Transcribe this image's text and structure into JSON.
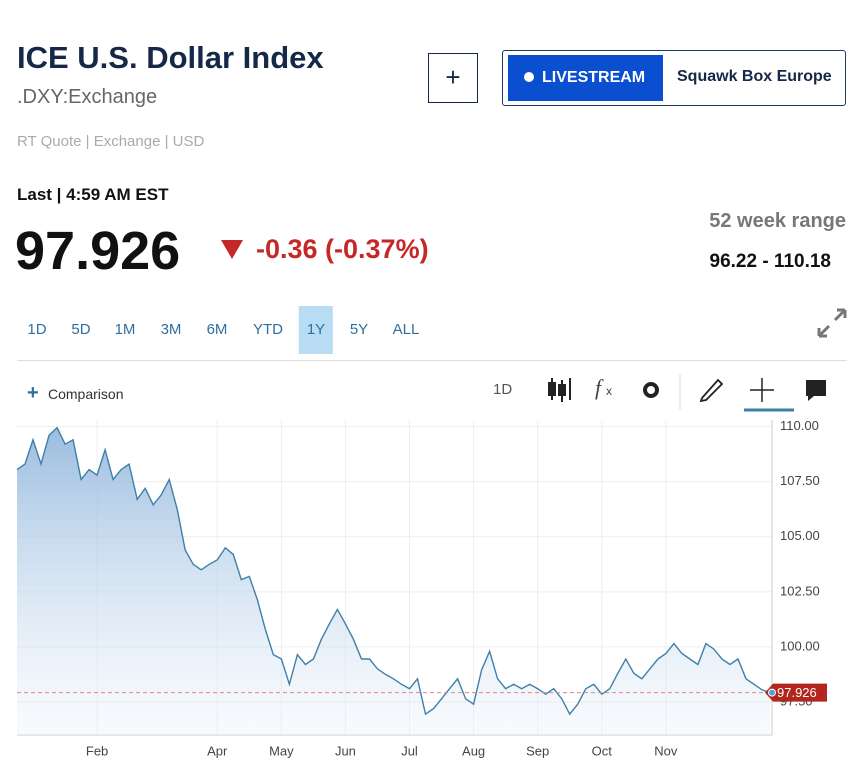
{
  "header": {
    "title": "ICE U.S. Dollar Index",
    "symbol": ".DXY:Exchange",
    "quote_info": "RT Quote | Exchange | USD",
    "add_button": "+",
    "livestream": "LIVESTREAM",
    "show": "Squawk Box Europe"
  },
  "quote": {
    "last_label": "Last | 4:59 AM EST",
    "price": "97.926",
    "change": "-0.36 (-0.37%)",
    "range_label": "52 week range",
    "range": "96.22 - 110.18"
  },
  "periods": {
    "items": [
      "1D",
      "5D",
      "1M",
      "3M",
      "6M",
      "YTD",
      "1Y",
      "5Y",
      "ALL"
    ],
    "selected_index": 6
  },
  "toolbar": {
    "comparison": "Comparison",
    "interval": "1D"
  },
  "chart_data": {
    "type": "area",
    "color": "#3f7fa8",
    "categories": [
      null,
      null,
      null,
      null,
      null,
      null,
      null,
      null,
      null,
      null,
      "Feb",
      null,
      null,
      null,
      null,
      null,
      null,
      null,
      null,
      null,
      null,
      null,
      null,
      null,
      null,
      "Apr",
      null,
      null,
      null,
      null,
      null,
      null,
      null,
      "May",
      null,
      null,
      null,
      null,
      null,
      null,
      null,
      "Jun",
      null,
      null,
      null,
      null,
      null,
      null,
      null,
      "Jul",
      null,
      null,
      null,
      null,
      null,
      null,
      null,
      "Aug",
      null,
      null,
      null,
      null,
      null,
      null,
      null,
      "Sep",
      null,
      null,
      null,
      null,
      null,
      null,
      null,
      "Oct",
      null,
      null,
      null,
      null,
      null,
      null,
      null,
      "Nov",
      null,
      null,
      null,
      null,
      null,
      null,
      null,
      null,
      null,
      null,
      null,
      null,
      null
    ],
    "values": [
      108.05,
      108.3,
      109.4,
      108.3,
      109.6,
      109.95,
      109.2,
      109.4,
      107.6,
      108.05,
      107.8,
      108.95,
      107.6,
      108.05,
      108.3,
      106.7,
      107.2,
      106.45,
      106.9,
      107.6,
      106.25,
      104.4,
      103.75,
      103.5,
      103.75,
      103.95,
      104.5,
      104.2,
      103.05,
      103.2,
      102.15,
      100.8,
      99.65,
      99.45,
      98.3,
      99.65,
      99.2,
      99.45,
      100.35,
      101.05,
      101.7,
      101.05,
      100.35,
      99.45,
      99.45,
      99.0,
      98.75,
      98.55,
      98.3,
      98.1,
      98.55,
      96.95,
      97.2,
      97.65,
      98.1,
      98.55,
      97.65,
      97.4,
      98.95,
      99.8,
      98.55,
      98.1,
      98.3,
      98.1,
      98.3,
      98.1,
      97.85,
      98.1,
      97.65,
      96.95,
      97.4,
      98.1,
      98.3,
      97.85,
      98.1,
      98.8,
      99.45,
      98.8,
      98.55,
      99.0,
      99.45,
      99.7,
      100.15,
      99.7,
      99.45,
      99.2,
      100.15,
      99.9,
      99.45,
      99.2,
      99.45,
      98.55,
      98.3,
      98.05,
      97.926
    ],
    "ylim": [
      96.0,
      110.3
    ],
    "yticks": [
      {
        "value": 110,
        "label": "110.00"
      },
      {
        "value": 107.5,
        "label": "107.50"
      },
      {
        "value": 105,
        "label": "105.00"
      },
      {
        "value": 102.5,
        "label": "102.50"
      },
      {
        "value": 100,
        "label": "100.00"
      },
      {
        "value": 97.5,
        "label": "97.50"
      }
    ],
    "grid": true
  }
}
